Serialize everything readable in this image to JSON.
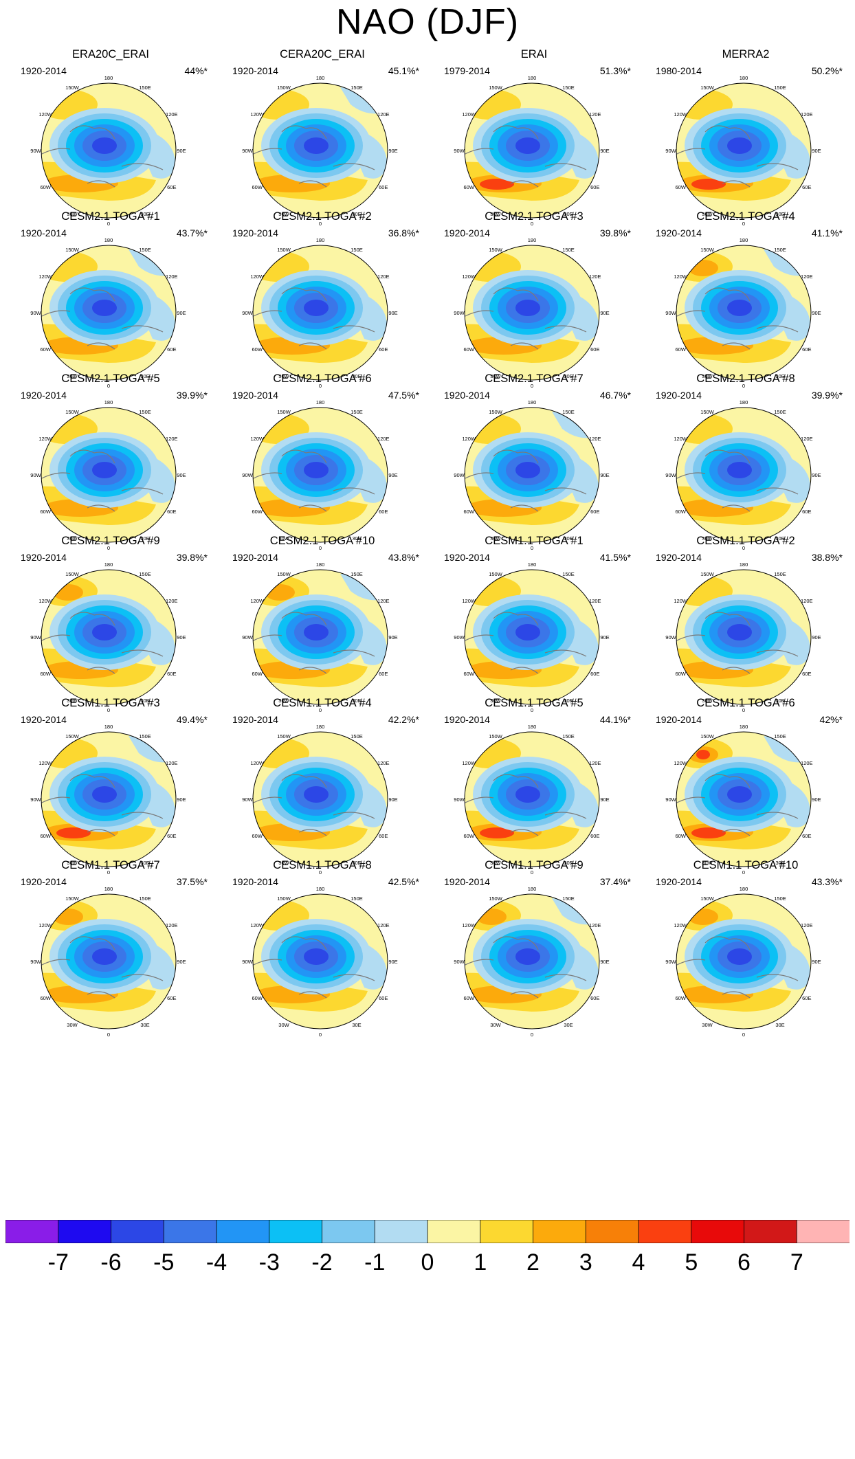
{
  "title": "NAO (DJF)",
  "lon_labels": [
    "180",
    "150E",
    "120E",
    "90E",
    "60E",
    "30E",
    "0",
    "30W",
    "60W",
    "90W",
    "120W",
    "150W"
  ],
  "panels": [
    {
      "title": "ERA20C_ERAI",
      "period": "1920-2014",
      "pct": "44%*"
    },
    {
      "title": "CERA20C_ERAI",
      "period": "1920-2014",
      "pct": "45.1%*"
    },
    {
      "title": "ERAI",
      "period": "1979-2014",
      "pct": "51.3%*"
    },
    {
      "title": "MERRA2",
      "period": "1980-2014",
      "pct": "50.2%*"
    },
    {
      "title": "CESM2.1 TOGA #1",
      "period": "1920-2014",
      "pct": "43.7%*"
    },
    {
      "title": "CESM2.1 TOGA #2",
      "period": "1920-2014",
      "pct": "36.8%*"
    },
    {
      "title": "CESM2.1 TOGA #3",
      "period": "1920-2014",
      "pct": "39.8%*"
    },
    {
      "title": "CESM2.1 TOGA #4",
      "period": "1920-2014",
      "pct": "41.1%*"
    },
    {
      "title": "CESM2.1 TOGA #5",
      "period": "1920-2014",
      "pct": "39.9%*"
    },
    {
      "title": "CESM2.1 TOGA #6",
      "period": "1920-2014",
      "pct": "47.5%*"
    },
    {
      "title": "CESM2.1 TOGA #7",
      "period": "1920-2014",
      "pct": "46.7%*"
    },
    {
      "title": "CESM2.1 TOGA #8",
      "period": "1920-2014",
      "pct": "39.9%*"
    },
    {
      "title": "CESM2.1 TOGA #9",
      "period": "1920-2014",
      "pct": "39.8%*"
    },
    {
      "title": "CESM2.1 TOGA #10",
      "period": "1920-2014",
      "pct": "43.8%*"
    },
    {
      "title": "CESM1.1 TOGA #1",
      "period": "1920-2014",
      "pct": "41.5%*"
    },
    {
      "title": "CESM1.1 TOGA #2",
      "period": "1920-2014",
      "pct": "38.8%*"
    },
    {
      "title": "CESM1.1 TOGA #3",
      "period": "1920-2014",
      "pct": "49.4%*"
    },
    {
      "title": "CESM1.1 TOGA #4",
      "period": "1920-2014",
      "pct": "42.2%*"
    },
    {
      "title": "CESM1.1 TOGA #5",
      "period": "1920-2014",
      "pct": "44.1%*"
    },
    {
      "title": "CESM1.1 TOGA #6",
      "period": "1920-2014",
      "pct": "42%*"
    },
    {
      "title": "CESM1.1 TOGA #7",
      "period": "1920-2014",
      "pct": "37.5%*"
    },
    {
      "title": "CESM1.1 TOGA #8",
      "period": "1920-2014",
      "pct": "42.5%*"
    },
    {
      "title": "CESM1.1 TOGA #9",
      "period": "1920-2014",
      "pct": "37.4%*"
    },
    {
      "title": "CESM1.1 TOGA #10",
      "period": "1920-2014",
      "pct": "43.3%*"
    }
  ],
  "colorbar": {
    "colors": [
      "#8a1de8",
      "#1e0af0",
      "#2c47e6",
      "#3b76e8",
      "#2295f5",
      "#0cc0f5",
      "#7cc8f0",
      "#b2dcf2",
      "#fbf5a4",
      "#fcd830",
      "#fcaa0c",
      "#f78008",
      "#fa4010",
      "#e80a0a",
      "#d21818",
      "#ffb4b4"
    ],
    "labels": [
      "-7",
      "-6",
      "-5",
      "-4",
      "-3",
      "-2",
      "-1",
      "0",
      "1",
      "2",
      "3",
      "4",
      "5",
      "6",
      "7"
    ]
  }
}
